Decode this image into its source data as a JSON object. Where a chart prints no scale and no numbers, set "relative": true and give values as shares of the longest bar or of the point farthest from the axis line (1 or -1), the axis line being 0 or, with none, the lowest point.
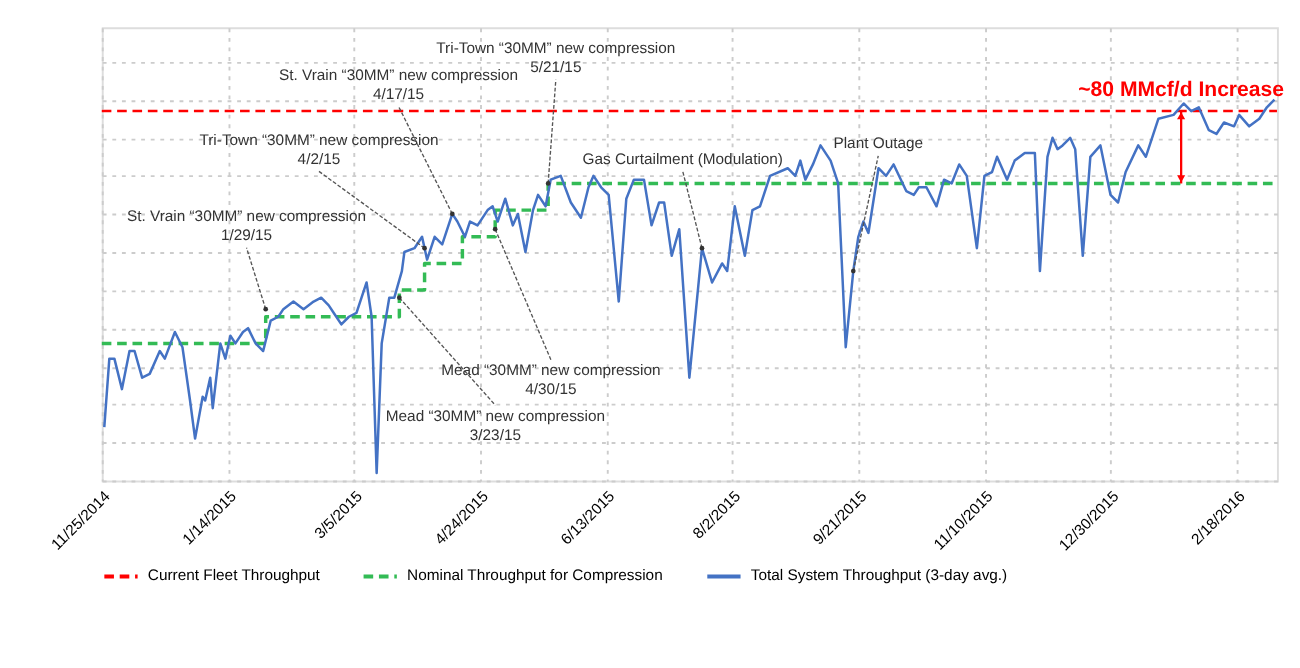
{
  "chart_data": {
    "type": "line",
    "relative": true,
    "grid": true,
    "legend": "bottom",
    "tick_labels": "x",
    "xlim": [
      "2014-11-25",
      "2016-03-05"
    ],
    "xticks": [
      {
        "value": "2014-11-25",
        "label": "11/25/2014"
      },
      {
        "value": "2015-01-14",
        "label": "1/14/2015"
      },
      {
        "value": "2015-03-05",
        "label": "3/5/2015"
      },
      {
        "value": "2015-04-24",
        "label": "4/24/2015"
      },
      {
        "value": "2015-06-13",
        "label": "6/13/2015"
      },
      {
        "value": "2015-08-02",
        "label": "8/2/2015"
      },
      {
        "value": "2015-09-21",
        "label": "9/21/2015"
      },
      {
        "value": "2015-11-10",
        "label": "11/10/2015"
      },
      {
        "value": "2015-12-30",
        "label": "12/30/2015"
      },
      {
        "value": "2016-02-18",
        "label": "2/18/2016"
      }
    ],
    "series": [
      {
        "name": "Current Fleet Throughput",
        "line_style": "dashed",
        "color": "#ff0000",
        "x": [
          "2014-11-25",
          "2016-03-05"
        ],
        "values": [
          0.97,
          0.97
        ]
      },
      {
        "name": "Nominal Throughput for Compression",
        "type": "step",
        "line_style": "dashed",
        "color": "#33bb55",
        "x": [
          "2014-11-25",
          "2015-01-29",
          "2015-03-23",
          "2015-04-02",
          "2015-04-17",
          "2015-04-30",
          "2015-05-21",
          "2016-03-05"
        ],
        "values": [
          0.36,
          0.43,
          0.5,
          0.57,
          0.64,
          0.71,
          0.78,
          0.78
        ]
      },
      {
        "name": "Total System Throughput (3-day avg.)",
        "line_style": "solid",
        "color": "#4472c4",
        "x": [
          "2014-11-26",
          "2014-11-28",
          "2014-11-30",
          "2014-12-03",
          "2014-12-06",
          "2014-12-08",
          "2014-12-11",
          "2014-12-14",
          "2014-12-18",
          "2014-12-20",
          "2014-12-24",
          "2014-12-27",
          "2014-12-30",
          "2015-01-01",
          "2015-01-04",
          "2015-01-05",
          "2015-01-07",
          "2015-01-08",
          "2015-01-11",
          "2015-01-13",
          "2015-01-15",
          "2015-01-17",
          "2015-01-20",
          "2015-01-22",
          "2015-01-25",
          "2015-01-28",
          "2015-01-31",
          "2015-02-03",
          "2015-02-05",
          "2015-02-09",
          "2015-02-13",
          "2015-02-17",
          "2015-02-20",
          "2015-02-23",
          "2015-02-25",
          "2015-02-28",
          "2015-03-03",
          "2015-03-06",
          "2015-03-10",
          "2015-03-12",
          "2015-03-14",
          "2015-03-16",
          "2015-03-19",
          "2015-03-21",
          "2015-03-24",
          "2015-03-25",
          "2015-03-29",
          "2015-04-01",
          "2015-04-03",
          "2015-04-06",
          "2015-04-09",
          "2015-04-13",
          "2015-04-15",
          "2015-04-18",
          "2015-04-20",
          "2015-04-23",
          "2015-04-27",
          "2015-04-29",
          "2015-05-01",
          "2015-05-04",
          "2015-05-07",
          "2015-05-09",
          "2015-05-12",
          "2015-05-15",
          "2015-05-17",
          "2015-05-20",
          "2015-05-22",
          "2015-05-26",
          "2015-05-30",
          "2015-06-03",
          "2015-06-06",
          "2015-06-08",
          "2015-06-11",
          "2015-06-14",
          "2015-06-18",
          "2015-06-21",
          "2015-06-24",
          "2015-06-28",
          "2015-07-01",
          "2015-07-04",
          "2015-07-06",
          "2015-07-09",
          "2015-07-12",
          "2015-07-16",
          "2015-07-21",
          "2015-07-25",
          "2015-07-29",
          "2015-07-31",
          "2015-08-03",
          "2015-08-07",
          "2015-08-10",
          "2015-08-13",
          "2015-08-17",
          "2015-08-24",
          "2015-08-27",
          "2015-08-29",
          "2015-08-31",
          "2015-09-03",
          "2015-09-06",
          "2015-09-10",
          "2015-09-13",
          "2015-09-16",
          "2015-09-19",
          "2015-09-21",
          "2015-09-23",
          "2015-09-25",
          "2015-09-29",
          "2015-10-02",
          "2015-10-05",
          "2015-10-10",
          "2015-10-13",
          "2015-10-15",
          "2015-10-18",
          "2015-10-22",
          "2015-10-25",
          "2015-10-28",
          "2015-10-31",
          "2015-11-03",
          "2015-11-07",
          "2015-11-10",
          "2015-11-13",
          "2015-11-15",
          "2015-11-19",
          "2015-11-22",
          "2015-11-26",
          "2015-11-30",
          "2015-12-02",
          "2015-12-05",
          "2015-12-07",
          "2015-12-09",
          "2015-12-11",
          "2015-12-14",
          "2015-12-16",
          "2015-12-19",
          "2015-12-22",
          "2015-12-26",
          "2015-12-30",
          "2016-01-02",
          "2016-01-05",
          "2016-01-10",
          "2016-01-13",
          "2016-01-18",
          "2016-01-24",
          "2016-01-28",
          "2016-01-31",
          "2016-02-03",
          "2016-02-07",
          "2016-02-10",
          "2016-02-13",
          "2016-02-17",
          "2016-02-19",
          "2016-02-23",
          "2016-02-27",
          "2016-03-01",
          "2016-03-04"
        ],
        "values": [
          0.14,
          0.32,
          0.32,
          0.24,
          0.34,
          0.34,
          0.27,
          0.28,
          0.34,
          0.32,
          0.39,
          0.35,
          0.21,
          0.11,
          0.22,
          0.21,
          0.27,
          0.19,
          0.36,
          0.32,
          0.38,
          0.36,
          0.39,
          0.4,
          0.36,
          0.34,
          0.42,
          0.43,
          0.45,
          0.47,
          0.45,
          0.47,
          0.48,
          0.46,
          0.44,
          0.41,
          0.43,
          0.44,
          0.52,
          0.43,
          0.02,
          0.36,
          0.48,
          0.48,
          0.55,
          0.6,
          0.61,
          0.64,
          0.58,
          0.64,
          0.62,
          0.7,
          0.68,
          0.64,
          0.68,
          0.67,
          0.71,
          0.72,
          0.68,
          0.74,
          0.67,
          0.7,
          0.6,
          0.71,
          0.75,
          0.72,
          0.79,
          0.8,
          0.73,
          0.69,
          0.77,
          0.8,
          0.77,
          0.75,
          0.47,
          0.74,
          0.79,
          0.79,
          0.67,
          0.73,
          0.73,
          0.59,
          0.66,
          0.27,
          0.61,
          0.52,
          0.57,
          0.55,
          0.72,
          0.59,
          0.71,
          0.72,
          0.8,
          0.82,
          0.8,
          0.84,
          0.79,
          0.83,
          0.88,
          0.84,
          0.78,
          0.35,
          0.55,
          0.64,
          0.68,
          0.65,
          0.82,
          0.8,
          0.83,
          0.76,
          0.75,
          0.77,
          0.77,
          0.72,
          0.79,
          0.78,
          0.83,
          0.8,
          0.61,
          0.8,
          0.81,
          0.85,
          0.79,
          0.84,
          0.86,
          0.86,
          0.55,
          0.85,
          0.9,
          0.87,
          0.88,
          0.9,
          0.87,
          0.59,
          0.85,
          0.88,
          0.75,
          0.73,
          0.81,
          0.88,
          0.85,
          0.95,
          0.96,
          0.99,
          0.97,
          0.98,
          0.92,
          0.91,
          0.94,
          0.93,
          0.96,
          0.93,
          0.95,
          0.98,
          1.0
        ]
      }
    ],
    "annotations": [
      {
        "text": "St. Vrain “30MM” new compression\n1/29/15",
        "x": "2015-01-29",
        "y": 0.45
      },
      {
        "text": "Mead “30MM” new compression\n3/23/15",
        "x": "2015-03-23",
        "y": 0.48
      },
      {
        "text": "Tri-Town “30MM” new compression\n4/2/15",
        "x": "2015-04-02",
        "y": 0.61
      },
      {
        "text": "St. Vrain “30MM” new compression\n4/17/15",
        "x": "2015-04-13",
        "y": 0.7
      },
      {
        "text": "Mead “30MM” new compression\n4/30/15",
        "x": "2015-04-30",
        "y": 0.66
      },
      {
        "text": "Tri-Town “30MM” new compression\n5/21/15",
        "x": "2015-05-21",
        "y": 0.78
      },
      {
        "text": "Gas Curtailment (Modulation)",
        "x": "2015-07-21",
        "y": 0.61
      },
      {
        "text": "Plant Outage",
        "x": "2015-09-19",
        "y": 0.55
      },
      {
        "text": "~80 MMcf/d Increase",
        "x": "2016-01-27",
        "y": 0.97
      }
    ]
  }
}
